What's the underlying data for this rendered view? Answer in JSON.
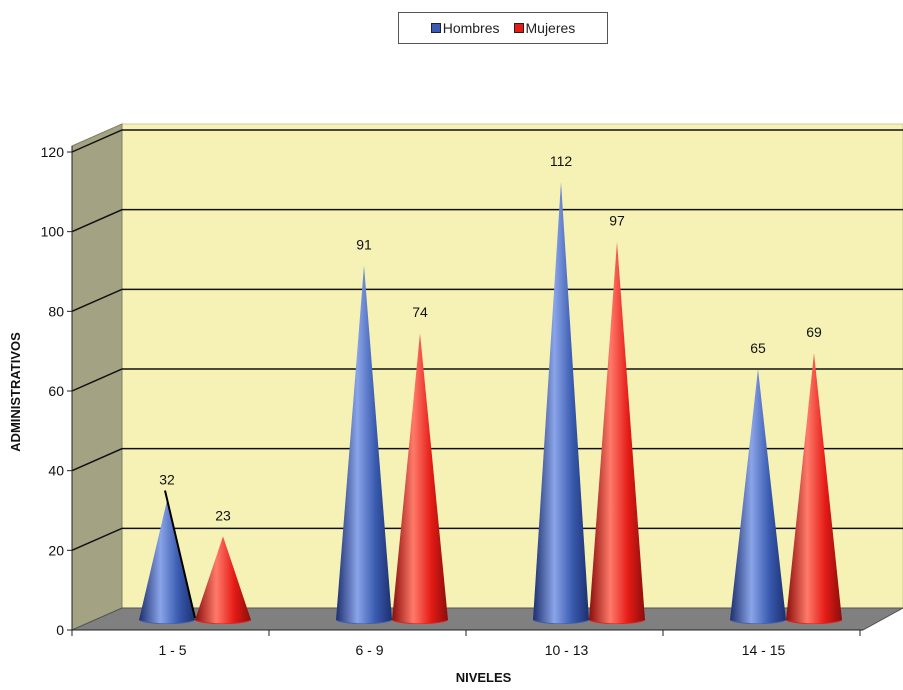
{
  "chart_data": {
    "type": "bar",
    "categories": [
      "1 - 5",
      "6 - 9",
      "10 - 13",
      "14 - 15"
    ],
    "series": [
      {
        "name": "Hombres",
        "values": [
          32,
          91,
          112,
          65
        ],
        "color": "#3a5bb0"
      },
      {
        "name": "Mujeres",
        "values": [
          23,
          74,
          97,
          69
        ],
        "color": "#e51b16"
      }
    ],
    "xlabel": "NIVELES",
    "ylabel": "ADMINISTRATIVOS",
    "ylim": [
      0,
      120
    ],
    "yticks": [
      0,
      20,
      40,
      60,
      80,
      100,
      120
    ],
    "grid": true,
    "legend_position": "top-center",
    "back_wall_color": "#f6f2b6",
    "side_wall_color": "#a3a384",
    "floor_color": "#808080"
  }
}
